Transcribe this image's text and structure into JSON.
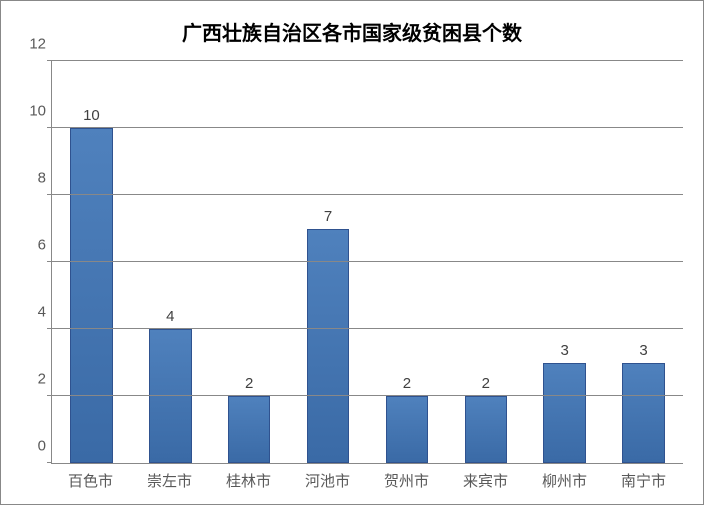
{
  "chart": {
    "type": "bar",
    "title": "广西壮族自治区各市国家级贫困县个数",
    "title_fontsize": 20,
    "categories": [
      "百色市",
      "崇左市",
      "桂林市",
      "河池市",
      "贺州市",
      "来宾市",
      "柳州市",
      "南宁市"
    ],
    "values": [
      10,
      4,
      2,
      7,
      2,
      2,
      3,
      3
    ],
    "bar_color": "#4f81bd",
    "bar_border_color": "#2f528f",
    "background_color": "#ffffff",
    "grid_color": "#888888",
    "ylim": [
      0,
      12
    ],
    "ytick_step": 2,
    "yticks": [
      0,
      2,
      4,
      6,
      8,
      10,
      12
    ],
    "label_fontsize": 15,
    "value_fontsize": 15,
    "bar_width_ratio": 0.54
  }
}
